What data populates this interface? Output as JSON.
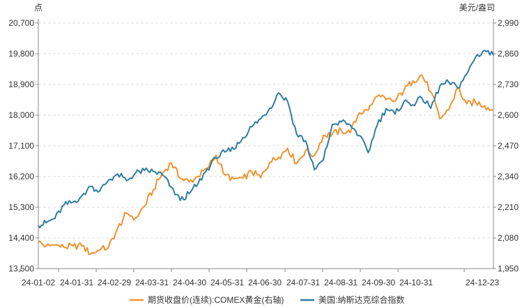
{
  "chart_data": {
    "type": "line",
    "title": "",
    "left_axis": {
      "unit": "点",
      "ylim": [
        13500,
        20700
      ],
      "ticks": [
        "13,500",
        "14,400",
        "15,300",
        "16,200",
        "17,100",
        "18,000",
        "18,900",
        "19,800",
        "20,700"
      ]
    },
    "right_axis": {
      "unit": "美元/盎司",
      "ylim": [
        1950,
        2990
      ],
      "ticks": [
        "1,950",
        "2,080",
        "2,210",
        "2,340",
        "2,470",
        "2,600",
        "2,730",
        "2,860",
        "2,990"
      ]
    },
    "x_axis": {
      "ticks": [
        "24-01-02",
        "24-01-31",
        "24-02-29",
        "24-03-31",
        "24-04-30",
        "24-05-31",
        "24-06-30",
        "24-07-31",
        "24-08-31",
        "24-09-30",
        "24-10-31",
        "24-12-23"
      ]
    },
    "grid": true,
    "legend_position": "bottom",
    "series": [
      {
        "name": "期货收盘价(连续):COMEX黄金(右轴)",
        "axis": "right",
        "color": "#F0922E",
        "points": [
          [
            "2024-01-02",
            2063
          ],
          [
            "2024-01-08",
            2046
          ],
          [
            "2024-01-15",
            2050
          ],
          [
            "2024-01-22",
            2040
          ],
          [
            "2024-01-29",
            2046
          ],
          [
            "2024-02-05",
            2046
          ],
          [
            "2024-02-12",
            2013
          ],
          [
            "2024-02-19",
            2028
          ],
          [
            "2024-02-26",
            2042
          ],
          [
            "2024-03-04",
            2120
          ],
          [
            "2024-03-11",
            2185
          ],
          [
            "2024-03-18",
            2165
          ],
          [
            "2024-03-25",
            2215
          ],
          [
            "2024-04-01",
            2285
          ],
          [
            "2024-04-08",
            2354
          ],
          [
            "2024-04-15",
            2398
          ],
          [
            "2024-04-22",
            2332
          ],
          [
            "2024-04-29",
            2318
          ],
          [
            "2024-05-06",
            2340
          ],
          [
            "2024-05-13",
            2375
          ],
          [
            "2024-05-20",
            2430
          ],
          [
            "2024-05-27",
            2347
          ],
          [
            "2024-06-03",
            2330
          ],
          [
            "2024-06-10",
            2333
          ],
          [
            "2024-06-17",
            2360
          ],
          [
            "2024-06-24",
            2335
          ],
          [
            "2024-07-01",
            2400
          ],
          [
            "2024-07-08",
            2422
          ],
          [
            "2024-07-15",
            2460
          ],
          [
            "2024-07-22",
            2395
          ],
          [
            "2024-07-29",
            2450
          ],
          [
            "2024-08-05",
            2430
          ],
          [
            "2024-08-12",
            2515
          ],
          [
            "2024-08-19",
            2520
          ],
          [
            "2024-08-26",
            2535
          ],
          [
            "2024-09-02",
            2525
          ],
          [
            "2024-09-09",
            2610
          ],
          [
            "2024-09-16",
            2620
          ],
          [
            "2024-09-23",
            2680
          ],
          [
            "2024-09-30",
            2665
          ],
          [
            "2024-10-07",
            2660
          ],
          [
            "2024-10-14",
            2705
          ],
          [
            "2024-10-21",
            2745
          ],
          [
            "2024-10-28",
            2770
          ],
          [
            "2024-11-04",
            2700
          ],
          [
            "2024-11-11",
            2585
          ],
          [
            "2024-11-18",
            2622
          ],
          [
            "2024-11-25",
            2715
          ],
          [
            "2024-12-02",
            2648
          ],
          [
            "2024-12-09",
            2655
          ],
          [
            "2024-12-16",
            2640
          ],
          [
            "2024-12-23",
            2620
          ]
        ]
      },
      {
        "name": "美国:纳斯达克综合指数",
        "axis": "left",
        "color": "#2E7BA0",
        "points": [
          [
            "2024-01-02",
            14765
          ],
          [
            "2024-01-08",
            14844
          ],
          [
            "2024-01-15",
            14970
          ],
          [
            "2024-01-22",
            15360
          ],
          [
            "2024-01-29",
            15445
          ],
          [
            "2024-02-05",
            15630
          ],
          [
            "2024-02-12",
            15910
          ],
          [
            "2024-02-19",
            15775
          ],
          [
            "2024-02-26",
            16100
          ],
          [
            "2024-03-04",
            16275
          ],
          [
            "2024-03-11",
            16080
          ],
          [
            "2024-03-18",
            16300
          ],
          [
            "2024-03-25",
            16380
          ],
          [
            "2024-04-01",
            16350
          ],
          [
            "2024-04-08",
            16250
          ],
          [
            "2024-04-15",
            15890
          ],
          [
            "2024-04-22",
            15500
          ],
          [
            "2024-04-29",
            15700
          ],
          [
            "2024-05-06",
            16000
          ],
          [
            "2024-05-13",
            16420
          ],
          [
            "2024-05-20",
            16740
          ],
          [
            "2024-05-27",
            16920
          ],
          [
            "2024-06-03",
            17000
          ],
          [
            "2024-06-10",
            17340
          ],
          [
            "2024-06-17",
            17660
          ],
          [
            "2024-06-24",
            17900
          ],
          [
            "2024-07-01",
            18200
          ],
          [
            "2024-07-08",
            18650
          ],
          [
            "2024-07-15",
            18400
          ],
          [
            "2024-07-22",
            17450
          ],
          [
            "2024-07-29",
            17250
          ],
          [
            "2024-08-05",
            16400
          ],
          [
            "2024-08-12",
            16690
          ],
          [
            "2024-08-19",
            17730
          ],
          [
            "2024-08-26",
            17800
          ],
          [
            "2024-09-02",
            17713
          ],
          [
            "2024-09-09",
            17400
          ],
          [
            "2024-09-16",
            16900
          ],
          [
            "2024-09-23",
            17700
          ],
          [
            "2024-09-30",
            18190
          ],
          [
            "2024-10-07",
            18030
          ],
          [
            "2024-10-14",
            18400
          ],
          [
            "2024-10-21",
            18300
          ],
          [
            "2024-10-28",
            18500
          ],
          [
            "2024-11-04",
            18200
          ],
          [
            "2024-11-11",
            18850
          ],
          [
            "2024-11-18",
            18970
          ],
          [
            "2024-11-25",
            18800
          ],
          [
            "2024-12-02",
            19200
          ],
          [
            "2024-12-09",
            19700
          ],
          [
            "2024-12-16",
            19900
          ],
          [
            "2024-12-23",
            19750
          ]
        ]
      }
    ]
  }
}
